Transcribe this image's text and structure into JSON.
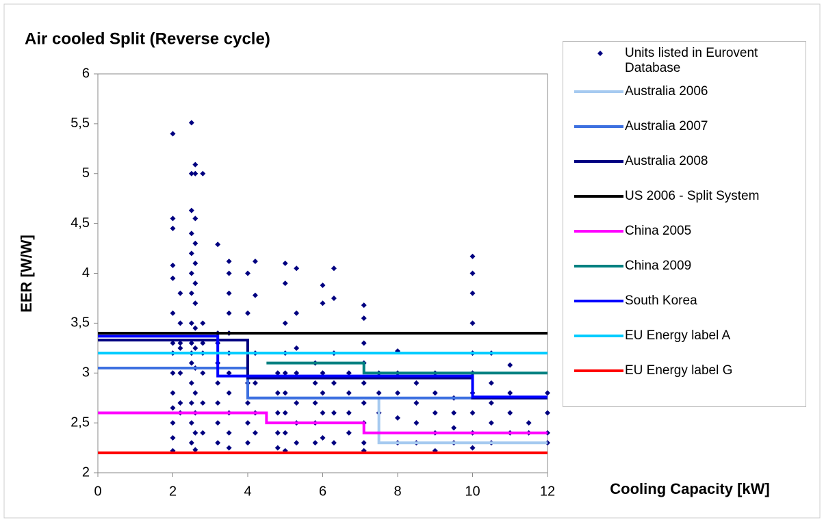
{
  "chart_data": {
    "type": "scatter",
    "title": "Air cooled Split (Reverse cycle)",
    "x_label": "Cooling Capacity [kW]",
    "y_label": "EER [W/W]",
    "xlim": [
      0,
      12
    ],
    "xticks": [
      0,
      2,
      4,
      6,
      8,
      10,
      12
    ],
    "ylim": [
      2,
      6
    ],
    "yticks": [
      2,
      {
        "value": 2.5,
        "label": "2,5"
      },
      3,
      {
        "value": 3.5,
        "label": "3,5"
      },
      4,
      {
        "value": 4.5,
        "label": "4,5"
      },
      5,
      {
        "value": 5.5,
        "label": "5,5"
      },
      6
    ],
    "series": [
      {
        "name": "Units listed in Eurovent Database",
        "type": "scatter",
        "color": "#000080",
        "x": [
          2,
          2,
          2,
          2,
          2,
          2,
          2,
          2,
          2,
          2,
          2,
          2,
          2,
          2,
          2.2,
          2.2,
          2.2,
          2.2,
          2.2,
          2.2,
          2.2,
          2.5,
          2.5,
          2.5,
          2.5,
          2.5,
          2.5,
          2.5,
          2.5,
          2.5,
          2.5,
          2.5,
          2.5,
          2.5,
          2.5,
          2.5,
          2.6,
          2.6,
          2.6,
          2.6,
          2.6,
          2.6,
          2.6,
          2.6,
          2.6,
          2.6,
          2.6,
          2.6,
          2.6,
          2.6,
          2.8,
          2.8,
          2.8,
          2.8,
          2.8,
          2.8,
          2.8,
          3.2,
          3.2,
          3.2,
          3.2,
          3.2,
          3.2,
          3.2,
          3.2,
          3.5,
          3.5,
          3.5,
          3.5,
          3.5,
          3.5,
          3.5,
          3.5,
          3.5,
          3.5,
          3.5,
          4,
          4,
          4,
          4,
          4,
          4,
          4,
          4.2,
          4.2,
          4.2,
          4.2,
          4.2,
          4.2,
          4.8,
          4.8,
          4.8,
          4.8,
          4.8,
          5,
          5,
          5,
          5,
          5,
          5,
          5,
          5,
          5,
          5.3,
          5.3,
          5.3,
          5.3,
          5.3,
          5.3,
          5.3,
          5.8,
          5.8,
          5.8,
          5.8,
          5.8,
          6,
          6,
          6,
          6,
          6,
          6,
          6.3,
          6.3,
          6.3,
          6.3,
          6.3,
          6.3,
          6.7,
          6.7,
          6.7,
          6.7,
          7.1,
          7.1,
          7.1,
          7.1,
          7.1,
          7.1,
          7.1,
          7.1,
          7.1,
          7.5,
          7.5,
          7.5,
          7.5,
          8,
          8,
          8,
          8,
          8,
          8.5,
          8.5,
          8.5,
          8.5,
          9,
          9,
          9,
          9,
          9,
          9.5,
          9.5,
          9.5,
          9.5,
          10,
          10,
          10,
          10,
          10,
          10,
          10,
          10,
          10,
          10,
          10.5,
          10.5,
          10.5,
          10.5,
          10.5,
          11,
          11,
          11,
          11,
          11.5,
          11.5,
          12,
          12,
          12,
          12
        ],
        "values": [
          5.4,
          4.55,
          4.45,
          4.08,
          3.95,
          3.6,
          3.3,
          3.2,
          3.0,
          2.8,
          2.65,
          2.5,
          2.35,
          2.22,
          3.8,
          3.5,
          3.3,
          3.25,
          3.0,
          2.7,
          2.6,
          5.51,
          5.0,
          4.63,
          4.4,
          4.2,
          4.0,
          3.8,
          3.5,
          3.3,
          3.2,
          3.1,
          2.9,
          2.7,
          2.5,
          2.3,
          5.09,
          5.0,
          4.55,
          4.3,
          4.1,
          3.9,
          3.7,
          3.45,
          3.25,
          3.05,
          2.8,
          2.6,
          2.4,
          2.23,
          5.0,
          3.5,
          3.3,
          3.2,
          3.0,
          2.7,
          2.4,
          4.29,
          3.4,
          3.3,
          3.1,
          2.9,
          2.7,
          2.5,
          2.3,
          4.12,
          4.0,
          3.8,
          3.6,
          3.4,
          3.2,
          3.0,
          2.8,
          2.6,
          2.4,
          2.25,
          4.0,
          3.6,
          3.2,
          2.9,
          2.7,
          2.5,
          2.3,
          4.12,
          3.78,
          3.2,
          2.9,
          2.6,
          2.4,
          3.0,
          2.8,
          2.6,
          2.4,
          2.25,
          4.1,
          3.9,
          3.5,
          3.2,
          3.0,
          2.8,
          2.6,
          2.4,
          2.22,
          4.05,
          3.6,
          3.25,
          3.0,
          2.7,
          2.5,
          2.3,
          3.1,
          2.9,
          2.7,
          2.5,
          2.3,
          3.88,
          3.7,
          3.0,
          2.8,
          2.6,
          2.35,
          4.05,
          3.75,
          3.2,
          2.9,
          2.6,
          2.3,
          3.0,
          2.8,
          2.6,
          2.4,
          3.68,
          3.55,
          3.3,
          3.1,
          2.9,
          2.7,
          2.5,
          2.3,
          2.22,
          3.0,
          2.8,
          2.6,
          2.4,
          3.22,
          3.0,
          2.8,
          2.55,
          2.3,
          2.9,
          2.7,
          2.5,
          2.3,
          3.0,
          2.8,
          2.6,
          2.4,
          2.22,
          2.75,
          2.6,
          2.45,
          2.3,
          4.17,
          4.0,
          3.8,
          3.5,
          3.2,
          3.0,
          2.8,
          2.6,
          2.4,
          2.25,
          3.2,
          2.9,
          2.7,
          2.5,
          2.3,
          3.08,
          2.8,
          2.6,
          2.4,
          2.5,
          2.4,
          2.8,
          2.6,
          2.4,
          2.3
        ]
      },
      {
        "name": "Australia 2006",
        "type": "line",
        "color": "#a6caf0",
        "x": [
          4,
          7.5,
          7.5,
          12
        ],
        "values": [
          2.75,
          2.75,
          2.3,
          2.3
        ]
      },
      {
        "name": "Australia 2007",
        "type": "line",
        "color": "#3d70e0",
        "x": [
          0,
          4,
          4,
          12
        ],
        "values": [
          3.05,
          3.05,
          2.75,
          2.75
        ]
      },
      {
        "name": "Australia 2008",
        "type": "line",
        "color": "#000080",
        "x": [
          0,
          4,
          4,
          10,
          10,
          12
        ],
        "values": [
          3.33,
          3.33,
          2.95,
          2.95,
          2.75,
          2.75
        ]
      },
      {
        "name": "US 2006 - Split System",
        "type": "line",
        "color": "#000000",
        "x": [
          0,
          12
        ],
        "values": [
          3.4,
          3.4
        ]
      },
      {
        "name": "China 2005",
        "type": "line",
        "color": "#ff00ff",
        "x": [
          0,
          4.5,
          4.5,
          7.1,
          7.1,
          12
        ],
        "values": [
          2.6,
          2.6,
          2.5,
          2.5,
          2.4,
          2.4
        ]
      },
      {
        "name": "China 2009",
        "type": "line",
        "color": "#008080",
        "x": [
          4.5,
          7.1,
          7.1,
          12
        ],
        "values": [
          3.1,
          3.1,
          3.0,
          3.0
        ]
      },
      {
        "name": "South Korea",
        "type": "line",
        "color": "#0000ff",
        "x": [
          0,
          3.2,
          3.2,
          10,
          10,
          12
        ],
        "values": [
          3.37,
          3.37,
          2.97,
          2.97,
          2.76,
          2.76
        ]
      },
      {
        "name": "EU Energy label A",
        "type": "line",
        "color": "#00ccff",
        "x": [
          0,
          12
        ],
        "values": [
          3.2,
          3.2
        ]
      },
      {
        "name": "EU Energy label G",
        "type": "line",
        "color": "#ff0000",
        "x": [
          0,
          12
        ],
        "values": [
          2.2,
          2.2
        ]
      }
    ]
  }
}
